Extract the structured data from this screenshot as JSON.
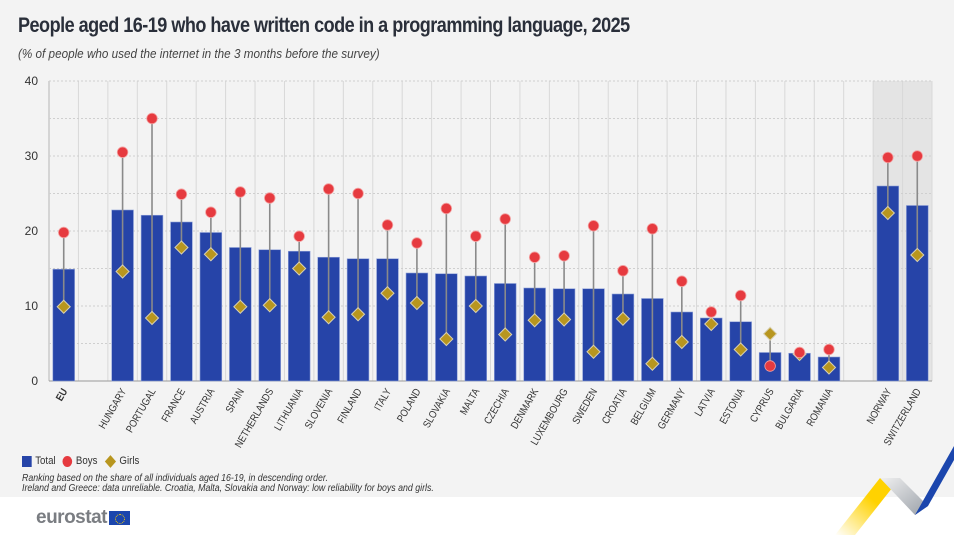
{
  "header": {
    "title": "People aged 16-19 who have written code in a programming language, 2025",
    "subtitle": "(% of people who used the internet in the 3 months before the survey)"
  },
  "legend": {
    "total": "Total",
    "boys": "Boys",
    "girls": "Girls"
  },
  "notes": {
    "line1": "Ranking based on the share of all individuals aged 16-19, in descending order.",
    "line2": "Ireland and Greece: data unreliable. Croatia, Malta, Slovakia and Norway: low reliability for boys and girls."
  },
  "logo": {
    "text": "eurostat"
  },
  "colors": {
    "total": "#2644a8",
    "boys": "#e63a3f",
    "girls": "#b8961f",
    "highlight_band": "#e4e4e4"
  },
  "chart_data": {
    "type": "bar",
    "title": "People aged 16-19 who have written code in a programming language, 2025",
    "subtitle": "(% of people who used the internet in the 3 months before the survey)",
    "xlabel": "",
    "ylabel": "",
    "ylim": [
      0,
      40
    ],
    "yticks": [
      0,
      10,
      20,
      30,
      40
    ],
    "grid": true,
    "legend_position": "bottom-left",
    "categories": [
      "EU",
      "",
      "HUNGARY",
      "PORTUGAL",
      "FRANCE",
      "AUSTRIA",
      "SPAIN",
      "NETHERLANDS",
      "LITHUANIA",
      "SLOVENIA",
      "FINLAND",
      "ITALY",
      "POLAND",
      "SLOVAKIA",
      "MALTA",
      "CZECHIA",
      "DENMARK",
      "LUXEMBOURG",
      "SWEDEN",
      "CROATIA",
      "BELGIUM",
      "GERMANY",
      "LATVIA",
      "ESTONIA",
      "CYPRUS",
      "BULGARIA",
      "ROMANIA",
      "",
      "NORWAY",
      "SWITZERLAND"
    ],
    "highlighted_categories": [
      "NORWAY",
      "SWITZERLAND"
    ],
    "series": [
      {
        "name": "Total",
        "mark": "bar",
        "values": [
          14.9,
          null,
          22.8,
          22.1,
          21.2,
          19.8,
          17.8,
          17.5,
          17.3,
          16.5,
          16.3,
          16.3,
          14.4,
          14.3,
          14.0,
          13.0,
          12.4,
          12.3,
          12.3,
          11.6,
          11.0,
          9.2,
          8.4,
          7.9,
          3.8,
          3.7,
          3.2,
          null,
          26.0,
          23.4
        ]
      },
      {
        "name": "Boys",
        "mark": "circle",
        "values": [
          19.8,
          null,
          30.5,
          35.0,
          24.9,
          22.5,
          25.2,
          24.4,
          19.3,
          25.6,
          25.0,
          20.8,
          18.4,
          23.0,
          19.3,
          21.6,
          16.5,
          16.7,
          20.7,
          14.7,
          20.3,
          13.3,
          9.2,
          11.4,
          2.0,
          3.8,
          4.2,
          null,
          29.8,
          30.0
        ]
      },
      {
        "name": "Girls",
        "mark": "diamond",
        "values": [
          9.9,
          null,
          14.6,
          8.4,
          17.8,
          16.9,
          9.9,
          10.1,
          15.0,
          8.5,
          8.9,
          11.7,
          10.4,
          5.6,
          10.0,
          6.2,
          8.1,
          8.2,
          3.9,
          8.3,
          2.3,
          5.2,
          7.6,
          4.2,
          6.3,
          3.6,
          1.8,
          null,
          22.4,
          16.8
        ]
      }
    ]
  }
}
